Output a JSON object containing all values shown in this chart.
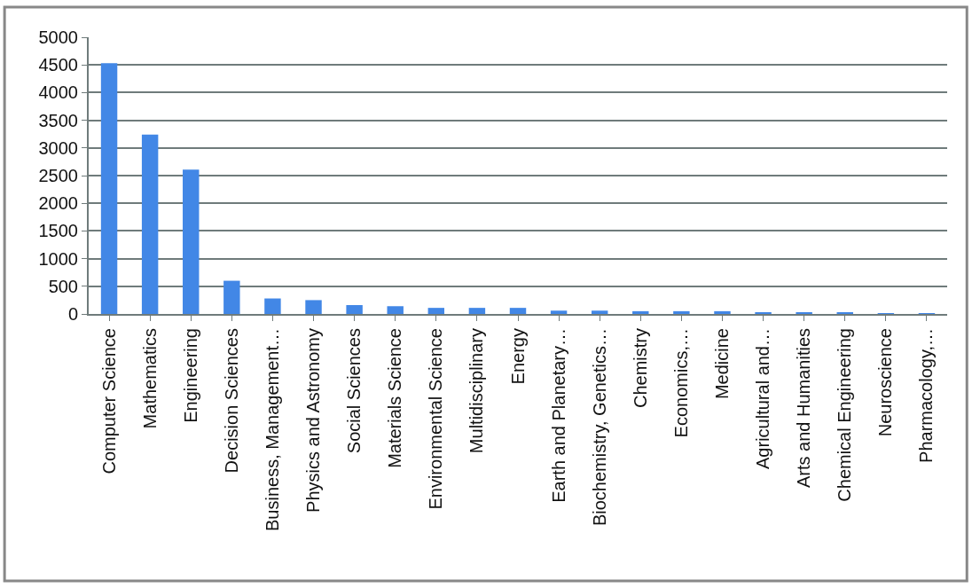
{
  "chart_data": {
    "type": "bar",
    "categories": [
      "Computer Science",
      "Mathematics",
      "Engineering",
      "Decision Sciences",
      "Business, Management…",
      "Physics and Astronomy",
      "Social Sciences",
      "Materials Science",
      "Environmental Science",
      "Multidisciplinary",
      "Energy",
      "Earth and Planetary…",
      "Biochemistry, Genetics…",
      "Chemistry",
      "Economics,…",
      "Medicine",
      "Agricultural and…",
      "Arts and Humanities",
      "Chemical Engineering",
      "Neuroscience",
      "Pharmacology,…"
    ],
    "values": [
      4530,
      3240,
      2610,
      600,
      280,
      250,
      160,
      140,
      110,
      110,
      110,
      60,
      60,
      50,
      50,
      50,
      30,
      30,
      30,
      10,
      10
    ],
    "color": "#4287e6",
    "ylim": [
      0,
      5000
    ],
    "yticks": [
      0,
      500,
      1000,
      1500,
      2000,
      2500,
      3000,
      3500,
      4000,
      4500,
      5000
    ],
    "grid": "y"
  }
}
